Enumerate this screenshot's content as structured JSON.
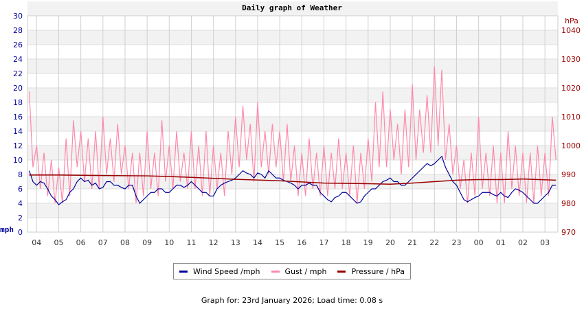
{
  "chart_data": {
    "type": "line",
    "title": "Daily graph of Weather",
    "ylabel_left": "mph",
    "ylabel_right": "hPa",
    "ylim_left": [
      0,
      30
    ],
    "ylim_right": [
      970,
      1045
    ],
    "yticks_left": [
      0,
      2,
      4,
      6,
      8,
      10,
      12,
      14,
      16,
      18,
      20,
      22,
      24,
      26,
      28,
      30
    ],
    "yticks_right": [
      970,
      980,
      990,
      1000,
      1010,
      1020,
      1030,
      1040
    ],
    "xticks": [
      "04",
      "05",
      "06",
      "07",
      "08",
      "09",
      "10",
      "11",
      "12",
      "13",
      "14",
      "15",
      "16",
      "17",
      "18",
      "19",
      "20",
      "21",
      "22",
      "23",
      "00",
      "01",
      "02",
      "03"
    ],
    "x_range": [
      "03:36",
      "03:34"
    ],
    "grid": true,
    "legend_placement": "bottom",
    "colors": {
      "wind": "#000099",
      "gust": "#ff88aa",
      "pressure": "#990000",
      "left_axis": "#000099",
      "right_axis": "#990000"
    },
    "series": [
      {
        "name": "Wind Speed /mph",
        "key": "wind"
      },
      {
        "name": "Gust / mph",
        "key": "gust"
      },
      {
        "name": "Pressure / hPa",
        "key": "pressure"
      }
    ],
    "points": [
      {
        "t": "03:40",
        "wind": 8.5,
        "gust": 19.5
      },
      {
        "t": "03:50",
        "wind": 7.0,
        "gust": 9
      },
      {
        "t": "04:00",
        "wind": 6.5,
        "gust": 12
      },
      {
        "t": "04:10",
        "wind": 7.0,
        "gust": 6
      },
      {
        "t": "04:20",
        "wind": 6.8,
        "gust": 11
      },
      {
        "t": "04:30",
        "wind": 6.0,
        "gust": 5
      },
      {
        "t": "04:40",
        "wind": 5.0,
        "gust": 10
      },
      {
        "t": "04:50",
        "wind": 4.5,
        "gust": 4
      },
      {
        "t": "05:00",
        "wind": 3.8,
        "gust": 9
      },
      {
        "t": "05:10",
        "wind": 4.2,
        "gust": 4
      },
      {
        "t": "05:20",
        "wind": 4.5,
        "gust": 13
      },
      {
        "t": "05:30",
        "wind": 5.5,
        "gust": 5
      },
      {
        "t": "05:40",
        "wind": 6.0,
        "gust": 15.5
      },
      {
        "t": "05:50",
        "wind": 7.0,
        "gust": 9
      },
      {
        "t": "06:00",
        "wind": 7.5,
        "gust": 14
      },
      {
        "t": "06:10",
        "wind": 7.0,
        "gust": 7
      },
      {
        "t": "06:20",
        "wind": 7.2,
        "gust": 13
      },
      {
        "t": "06:30",
        "wind": 6.5,
        "gust": 6
      },
      {
        "t": "06:40",
        "wind": 6.8,
        "gust": 14
      },
      {
        "t": "06:50",
        "wind": 6.0,
        "gust": 6
      },
      {
        "t": "07:00",
        "wind": 6.2,
        "gust": 16
      },
      {
        "t": "07:10",
        "wind": 7.0,
        "gust": 8
      },
      {
        "t": "07:20",
        "wind": 7.0,
        "gust": 13
      },
      {
        "t": "07:30",
        "wind": 6.5,
        "gust": 7
      },
      {
        "t": "07:40",
        "wind": 6.5,
        "gust": 15
      },
      {
        "t": "07:50",
        "wind": 6.2,
        "gust": 8
      },
      {
        "t": "08:00",
        "wind": 6.0,
        "gust": 12
      },
      {
        "t": "08:10",
        "wind": 6.5,
        "gust": 6
      },
      {
        "t": "08:20",
        "wind": 6.5,
        "gust": 11
      },
      {
        "t": "08:30",
        "wind": 5.0,
        "gust": 4
      },
      {
        "t": "08:40",
        "wind": 4.0,
        "gust": 11
      },
      {
        "t": "08:50",
        "wind": 4.5,
        "gust": 5
      },
      {
        "t": "09:00",
        "wind": 5.0,
        "gust": 14
      },
      {
        "t": "09:10",
        "wind": 5.5,
        "gust": 6
      },
      {
        "t": "09:20",
        "wind": 5.5,
        "gust": 11
      },
      {
        "t": "09:30",
        "wind": 6.0,
        "gust": 5
      },
      {
        "t": "09:40",
        "wind": 6.0,
        "gust": 15.5
      },
      {
        "t": "09:50",
        "wind": 5.5,
        "gust": 7
      },
      {
        "t": "10:00",
        "wind": 5.5,
        "gust": 12
      },
      {
        "t": "10:10",
        "wind": 6.0,
        "gust": 6
      },
      {
        "t": "10:20",
        "wind": 6.5,
        "gust": 14
      },
      {
        "t": "10:30",
        "wind": 6.5,
        "gust": 7
      },
      {
        "t": "10:40",
        "wind": 6.2,
        "gust": 11
      },
      {
        "t": "10:50",
        "wind": 6.5,
        "gust": 6
      },
      {
        "t": "11:00",
        "wind": 7.0,
        "gust": 14
      },
      {
        "t": "11:10",
        "wind": 6.5,
        "gust": 6
      },
      {
        "t": "11:20",
        "wind": 6.0,
        "gust": 12
      },
      {
        "t": "11:30",
        "wind": 5.5,
        "gust": 5
      },
      {
        "t": "11:40",
        "wind": 5.5,
        "gust": 14
      },
      {
        "t": "11:50",
        "wind": 5.0,
        "gust": 5
      },
      {
        "t": "12:00",
        "wind": 5.0,
        "gust": 12
      },
      {
        "t": "12:10",
        "wind": 6.0,
        "gust": 6
      },
      {
        "t": "12:20",
        "wind": 6.5,
        "gust": 11
      },
      {
        "t": "12:30",
        "wind": 6.8,
        "gust": 5
      },
      {
        "t": "12:40",
        "wind": 7.0,
        "gust": 14
      },
      {
        "t": "12:50",
        "wind": 7.2,
        "gust": 8
      },
      {
        "t": "13:00",
        "wind": 7.5,
        "gust": 16
      },
      {
        "t": "13:10",
        "wind": 8.0,
        "gust": 9
      },
      {
        "t": "13:20",
        "wind": 8.5,
        "gust": 17.5
      },
      {
        "t": "13:30",
        "wind": 8.2,
        "gust": 10
      },
      {
        "t": "13:40",
        "wind": 8.0,
        "gust": 15
      },
      {
        "t": "13:50",
        "wind": 7.5,
        "gust": 7
      },
      {
        "t": "14:00",
        "wind": 8.2,
        "gust": 18
      },
      {
        "t": "14:10",
        "wind": 8.0,
        "gust": 9
      },
      {
        "t": "14:20",
        "wind": 7.5,
        "gust": 14
      },
      {
        "t": "14:30",
        "wind": 8.5,
        "gust": 8
      },
      {
        "t": "14:40",
        "wind": 8.0,
        "gust": 15
      },
      {
        "t": "14:50",
        "wind": 7.5,
        "gust": 9
      },
      {
        "t": "15:00",
        "wind": 7.5,
        "gust": 14
      },
      {
        "t": "15:10",
        "wind": 7.2,
        "gust": 7
      },
      {
        "t": "15:20",
        "wind": 7.0,
        "gust": 15
      },
      {
        "t": "15:30",
        "wind": 6.8,
        "gust": 7
      },
      {
        "t": "15:40",
        "wind": 6.5,
        "gust": 12
      },
      {
        "t": "15:50",
        "wind": 6.0,
        "gust": 5
      },
      {
        "t": "16:00",
        "wind": 6.5,
        "gust": 11
      },
      {
        "t": "16:10",
        "wind": 6.5,
        "gust": 5
      },
      {
        "t": "16:20",
        "wind": 6.8,
        "gust": 13
      },
      {
        "t": "16:30",
        "wind": 6.5,
        "gust": 6
      },
      {
        "t": "16:40",
        "wind": 6.5,
        "gust": 11
      },
      {
        "t": "16:50",
        "wind": 5.5,
        "gust": 5
      },
      {
        "t": "17:00",
        "wind": 5.0,
        "gust": 12
      },
      {
        "t": "17:10",
        "wind": 4.5,
        "gust": 5
      },
      {
        "t": "17:20",
        "wind": 4.2,
        "gust": 11
      },
      {
        "t": "17:30",
        "wind": 4.8,
        "gust": 6
      },
      {
        "t": "17:40",
        "wind": 5.0,
        "gust": 13
      },
      {
        "t": "17:50",
        "wind": 5.5,
        "gust": 6
      },
      {
        "t": "18:00",
        "wind": 5.5,
        "gust": 11
      },
      {
        "t": "18:10",
        "wind": 5.0,
        "gust": 5
      },
      {
        "t": "18:20",
        "wind": 4.5,
        "gust": 12
      },
      {
        "t": "18:30",
        "wind": 4.0,
        "gust": 4
      },
      {
        "t": "18:40",
        "wind": 4.2,
        "gust": 11
      },
      {
        "t": "18:50",
        "wind": 5.0,
        "gust": 6
      },
      {
        "t": "19:00",
        "wind": 5.5,
        "gust": 13
      },
      {
        "t": "19:10",
        "wind": 6.0,
        "gust": 7
      },
      {
        "t": "19:20",
        "wind": 6.0,
        "gust": 18
      },
      {
        "t": "19:30",
        "wind": 6.5,
        "gust": 9
      },
      {
        "t": "19:40",
        "wind": 7.0,
        "gust": 19.5
      },
      {
        "t": "19:50",
        "wind": 7.2,
        "gust": 9
      },
      {
        "t": "20:00",
        "wind": 7.5,
        "gust": 17
      },
      {
        "t": "20:10",
        "wind": 7.0,
        "gust": 10
      },
      {
        "t": "20:20",
        "wind": 7.0,
        "gust": 15
      },
      {
        "t": "20:30",
        "wind": 6.5,
        "gust": 8
      },
      {
        "t": "20:40",
        "wind": 6.5,
        "gust": 17
      },
      {
        "t": "20:50",
        "wind": 7.0,
        "gust": 9
      },
      {
        "t": "21:00",
        "wind": 7.5,
        "gust": 20.5
      },
      {
        "t": "21:10",
        "wind": 8.0,
        "gust": 10
      },
      {
        "t": "21:20",
        "wind": 8.5,
        "gust": 17
      },
      {
        "t": "21:30",
        "wind": 9.0,
        "gust": 11
      },
      {
        "t": "21:40",
        "wind": 9.5,
        "gust": 19
      },
      {
        "t": "21:50",
        "wind": 9.2,
        "gust": 11
      },
      {
        "t": "22:00",
        "wind": 9.5,
        "gust": 23
      },
      {
        "t": "22:10",
        "wind": 10.0,
        "gust": 12
      },
      {
        "t": "22:20",
        "wind": 10.5,
        "gust": 22.5
      },
      {
        "t": "22:30",
        "wind": 9.0,
        "gust": 10
      },
      {
        "t": "22:40",
        "wind": 8.0,
        "gust": 15
      },
      {
        "t": "22:50",
        "wind": 7.0,
        "gust": 8
      },
      {
        "t": "23:00",
        "wind": 6.5,
        "gust": 12
      },
      {
        "t": "23:10",
        "wind": 5.5,
        "gust": 6
      },
      {
        "t": "23:20",
        "wind": 4.5,
        "gust": 10
      },
      {
        "t": "23:30",
        "wind": 4.2,
        "gust": 4
      },
      {
        "t": "23:40",
        "wind": 4.5,
        "gust": 11
      },
      {
        "t": "23:50",
        "wind": 4.8,
        "gust": 5
      },
      {
        "t": "00:00",
        "wind": 5.0,
        "gust": 16
      },
      {
        "t": "00:10",
        "wind": 5.5,
        "gust": 6
      },
      {
        "t": "00:20",
        "wind": 5.5,
        "gust": 11
      },
      {
        "t": "00:30",
        "wind": 5.5,
        "gust": 5
      },
      {
        "t": "00:40",
        "wind": 5.2,
        "gust": 12
      },
      {
        "t": "00:50",
        "wind": 5.0,
        "gust": 4
      },
      {
        "t": "01:00",
        "wind": 5.5,
        "gust": 11
      },
      {
        "t": "01:10",
        "wind": 5.0,
        "gust": 4
      },
      {
        "t": "01:20",
        "wind": 4.8,
        "gust": 14
      },
      {
        "t": "01:30",
        "wind": 5.5,
        "gust": 6
      },
      {
        "t": "01:40",
        "wind": 6.0,
        "gust": 12
      },
      {
        "t": "01:50",
        "wind": 5.8,
        "gust": 5
      },
      {
        "t": "02:00",
        "wind": 5.5,
        "gust": 11
      },
      {
        "t": "02:10",
        "wind": 5.0,
        "gust": 4
      },
      {
        "t": "02:20",
        "wind": 4.5,
        "gust": 11
      },
      {
        "t": "02:30",
        "wind": 4.0,
        "gust": 4
      },
      {
        "t": "02:40",
        "wind": 4.0,
        "gust": 12
      },
      {
        "t": "02:50",
        "wind": 4.5,
        "gust": 5
      },
      {
        "t": "03:00",
        "wind": 5.0,
        "gust": 11
      },
      {
        "t": "03:10",
        "wind": 5.5,
        "gust": 5
      },
      {
        "t": "03:20",
        "wind": 6.5,
        "gust": 16
      },
      {
        "t": "03:30",
        "wind": 6.5,
        "gust": 10
      }
    ],
    "pressure": [
      {
        "t": "03:40",
        "v": 989.8
      },
      {
        "t": "05:00",
        "v": 989.8
      },
      {
        "t": "07:00",
        "v": 989.6
      },
      {
        "t": "09:00",
        "v": 989.5
      },
      {
        "t": "11:00",
        "v": 989.0
      },
      {
        "t": "13:00",
        "v": 988.3
      },
      {
        "t": "15:00",
        "v": 987.8
      },
      {
        "t": "17:00",
        "v": 987.0
      },
      {
        "t": "19:00",
        "v": 986.8
      },
      {
        "t": "20:00",
        "v": 986.6
      },
      {
        "t": "21:00",
        "v": 987.0
      },
      {
        "t": "22:00",
        "v": 987.5
      },
      {
        "t": "23:00",
        "v": 988.0
      },
      {
        "t": "00:00",
        "v": 988.2
      },
      {
        "t": "01:00",
        "v": 988.2
      },
      {
        "t": "02:00",
        "v": 988.4
      },
      {
        "t": "03:30",
        "v": 988.0
      }
    ]
  },
  "legend": {
    "wind_label": "Wind Speed /mph",
    "gust_label": "Gust / mph",
    "pressure_label": "Pressure / hPa"
  },
  "footer": "Graph for: 23rd January 2026; Load time: 0.08 s"
}
